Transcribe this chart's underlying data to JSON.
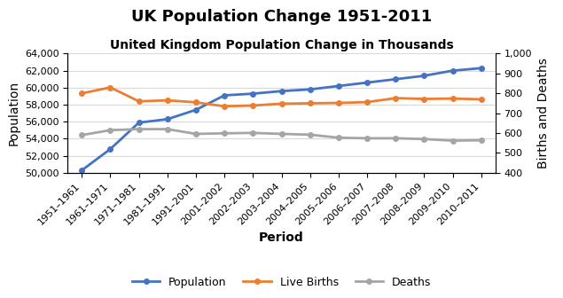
{
  "title": "UK Population Change 1951-2011",
  "subtitle": "United Kingdom Population Change in Thousands",
  "xlabel": "Period",
  "ylabel_left": "Population",
  "ylabel_right": "Births and Deaths",
  "categories": [
    "1951–1961",
    "1961–1971",
    "1971–1981",
    "1981–1991",
    "1991–2001",
    "2001–2002",
    "2002–2003",
    "2003–2004",
    "2004–2005",
    "2005–2006",
    "2006–2007",
    "2007–2008",
    "2008–2009",
    "2009–2010",
    "2010–2011"
  ],
  "population": [
    50300,
    52800,
    55900,
    56300,
    57400,
    59100,
    59300,
    59600,
    59800,
    60200,
    60600,
    61000,
    61400,
    62000,
    62300
  ],
  "live_births": [
    800,
    830,
    760,
    765,
    755,
    735,
    739,
    748,
    750,
    752,
    756,
    776,
    772,
    774,
    770
  ],
  "deaths": [
    590,
    615,
    620,
    620,
    596,
    599,
    601,
    596,
    592,
    577,
    574,
    574,
    570,
    562,
    564
  ],
  "population_color": "#4472C4",
  "births_color": "#ED7D31",
  "deaths_color": "#A5A5A5",
  "ylim_left": [
    50000,
    64000
  ],
  "ylim_right": [
    400,
    1000
  ],
  "left_yticks": [
    50000,
    52000,
    54000,
    56000,
    58000,
    60000,
    62000,
    64000
  ],
  "right_yticks": [
    400,
    500,
    600,
    700,
    800,
    900,
    1000
  ],
  "background_color": "#FFFFFF",
  "title_fontsize": 13,
  "subtitle_fontsize": 10,
  "axis_label_fontsize": 10,
  "tick_fontsize": 8,
  "legend_fontsize": 9,
  "line_width": 2.0,
  "marker": "o",
  "marker_size": 4
}
